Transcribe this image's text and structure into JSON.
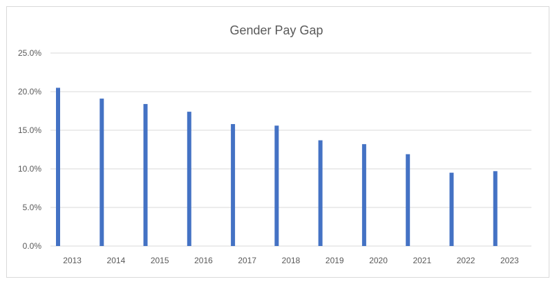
{
  "chart_data": {
    "type": "bar",
    "title": "Gender Pay Gap",
    "xlabel": "",
    "ylabel": "",
    "categories": [
      "2013",
      "2014",
      "2015",
      "2016",
      "2017",
      "2018",
      "2019",
      "2020",
      "2021",
      "2022",
      "2023"
    ],
    "series": [
      {
        "values": [
          20.5,
          19.1,
          18.4,
          17.4,
          15.8,
          15.6,
          13.7,
          13.2,
          11.9,
          9.5,
          9.7
        ]
      }
    ],
    "ylim": [
      0,
      25
    ],
    "yticks": [
      "0.0%",
      "5.0%",
      "10.0%",
      "15.0%",
      "20.0%",
      "25.0%"
    ],
    "grid": true,
    "legend": "none",
    "bar_color": "#4472c4"
  }
}
